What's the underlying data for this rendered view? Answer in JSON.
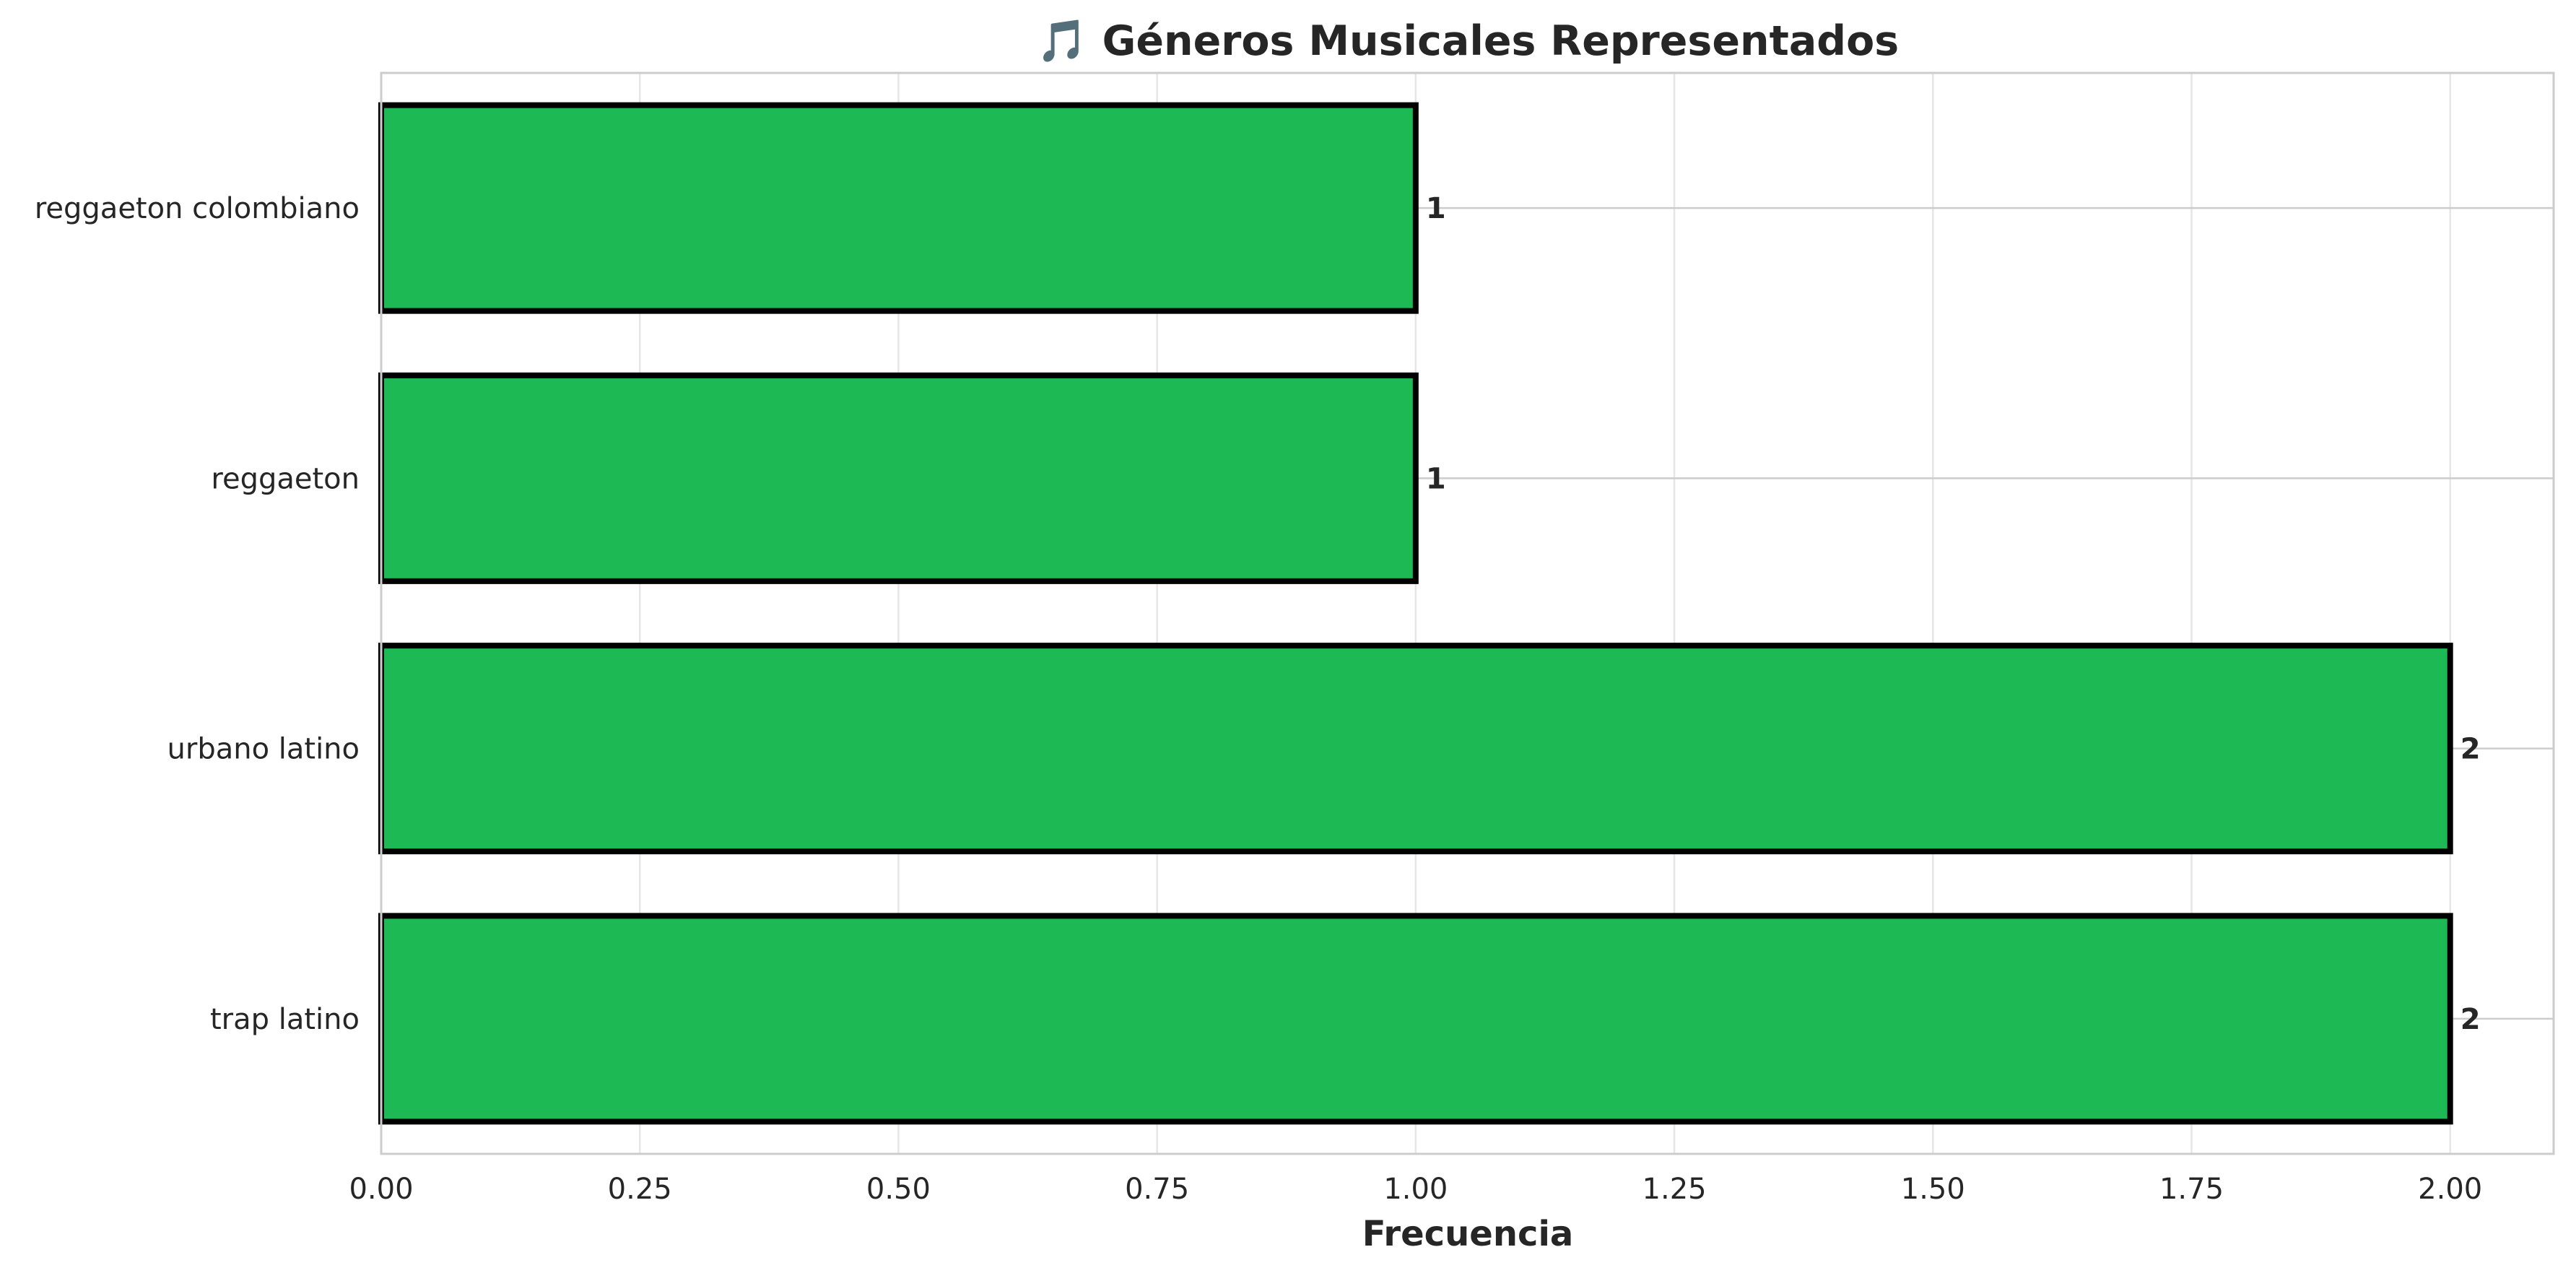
{
  "chart_data": {
    "type": "bar",
    "orientation": "horizontal",
    "title": "🎵 Géneros Musicales Representados",
    "xlabel": "Frecuencia",
    "ylabel": "",
    "categories": [
      "reggaeton colombiano",
      "reggaeton",
      "urbano latino",
      "trap latino"
    ],
    "values": [
      1,
      1,
      2,
      2
    ],
    "data_labels": [
      "1",
      "1",
      "2",
      "2"
    ],
    "xlim": [
      0,
      2.1
    ],
    "x_ticks": [
      0.0,
      0.25,
      0.5,
      0.75,
      1.0,
      1.25,
      1.5,
      1.75,
      2.0
    ],
    "x_tick_labels": [
      "0.00",
      "0.25",
      "0.50",
      "0.75",
      "1.00",
      "1.25",
      "1.50",
      "1.75",
      "2.00"
    ],
    "grid": true,
    "legend": "none",
    "colors": {
      "bar_fill": "#1db954",
      "bar_edge": "#000000",
      "grid": "#e6e6e6",
      "frame": "#cccccc",
      "text": "#262626"
    }
  }
}
